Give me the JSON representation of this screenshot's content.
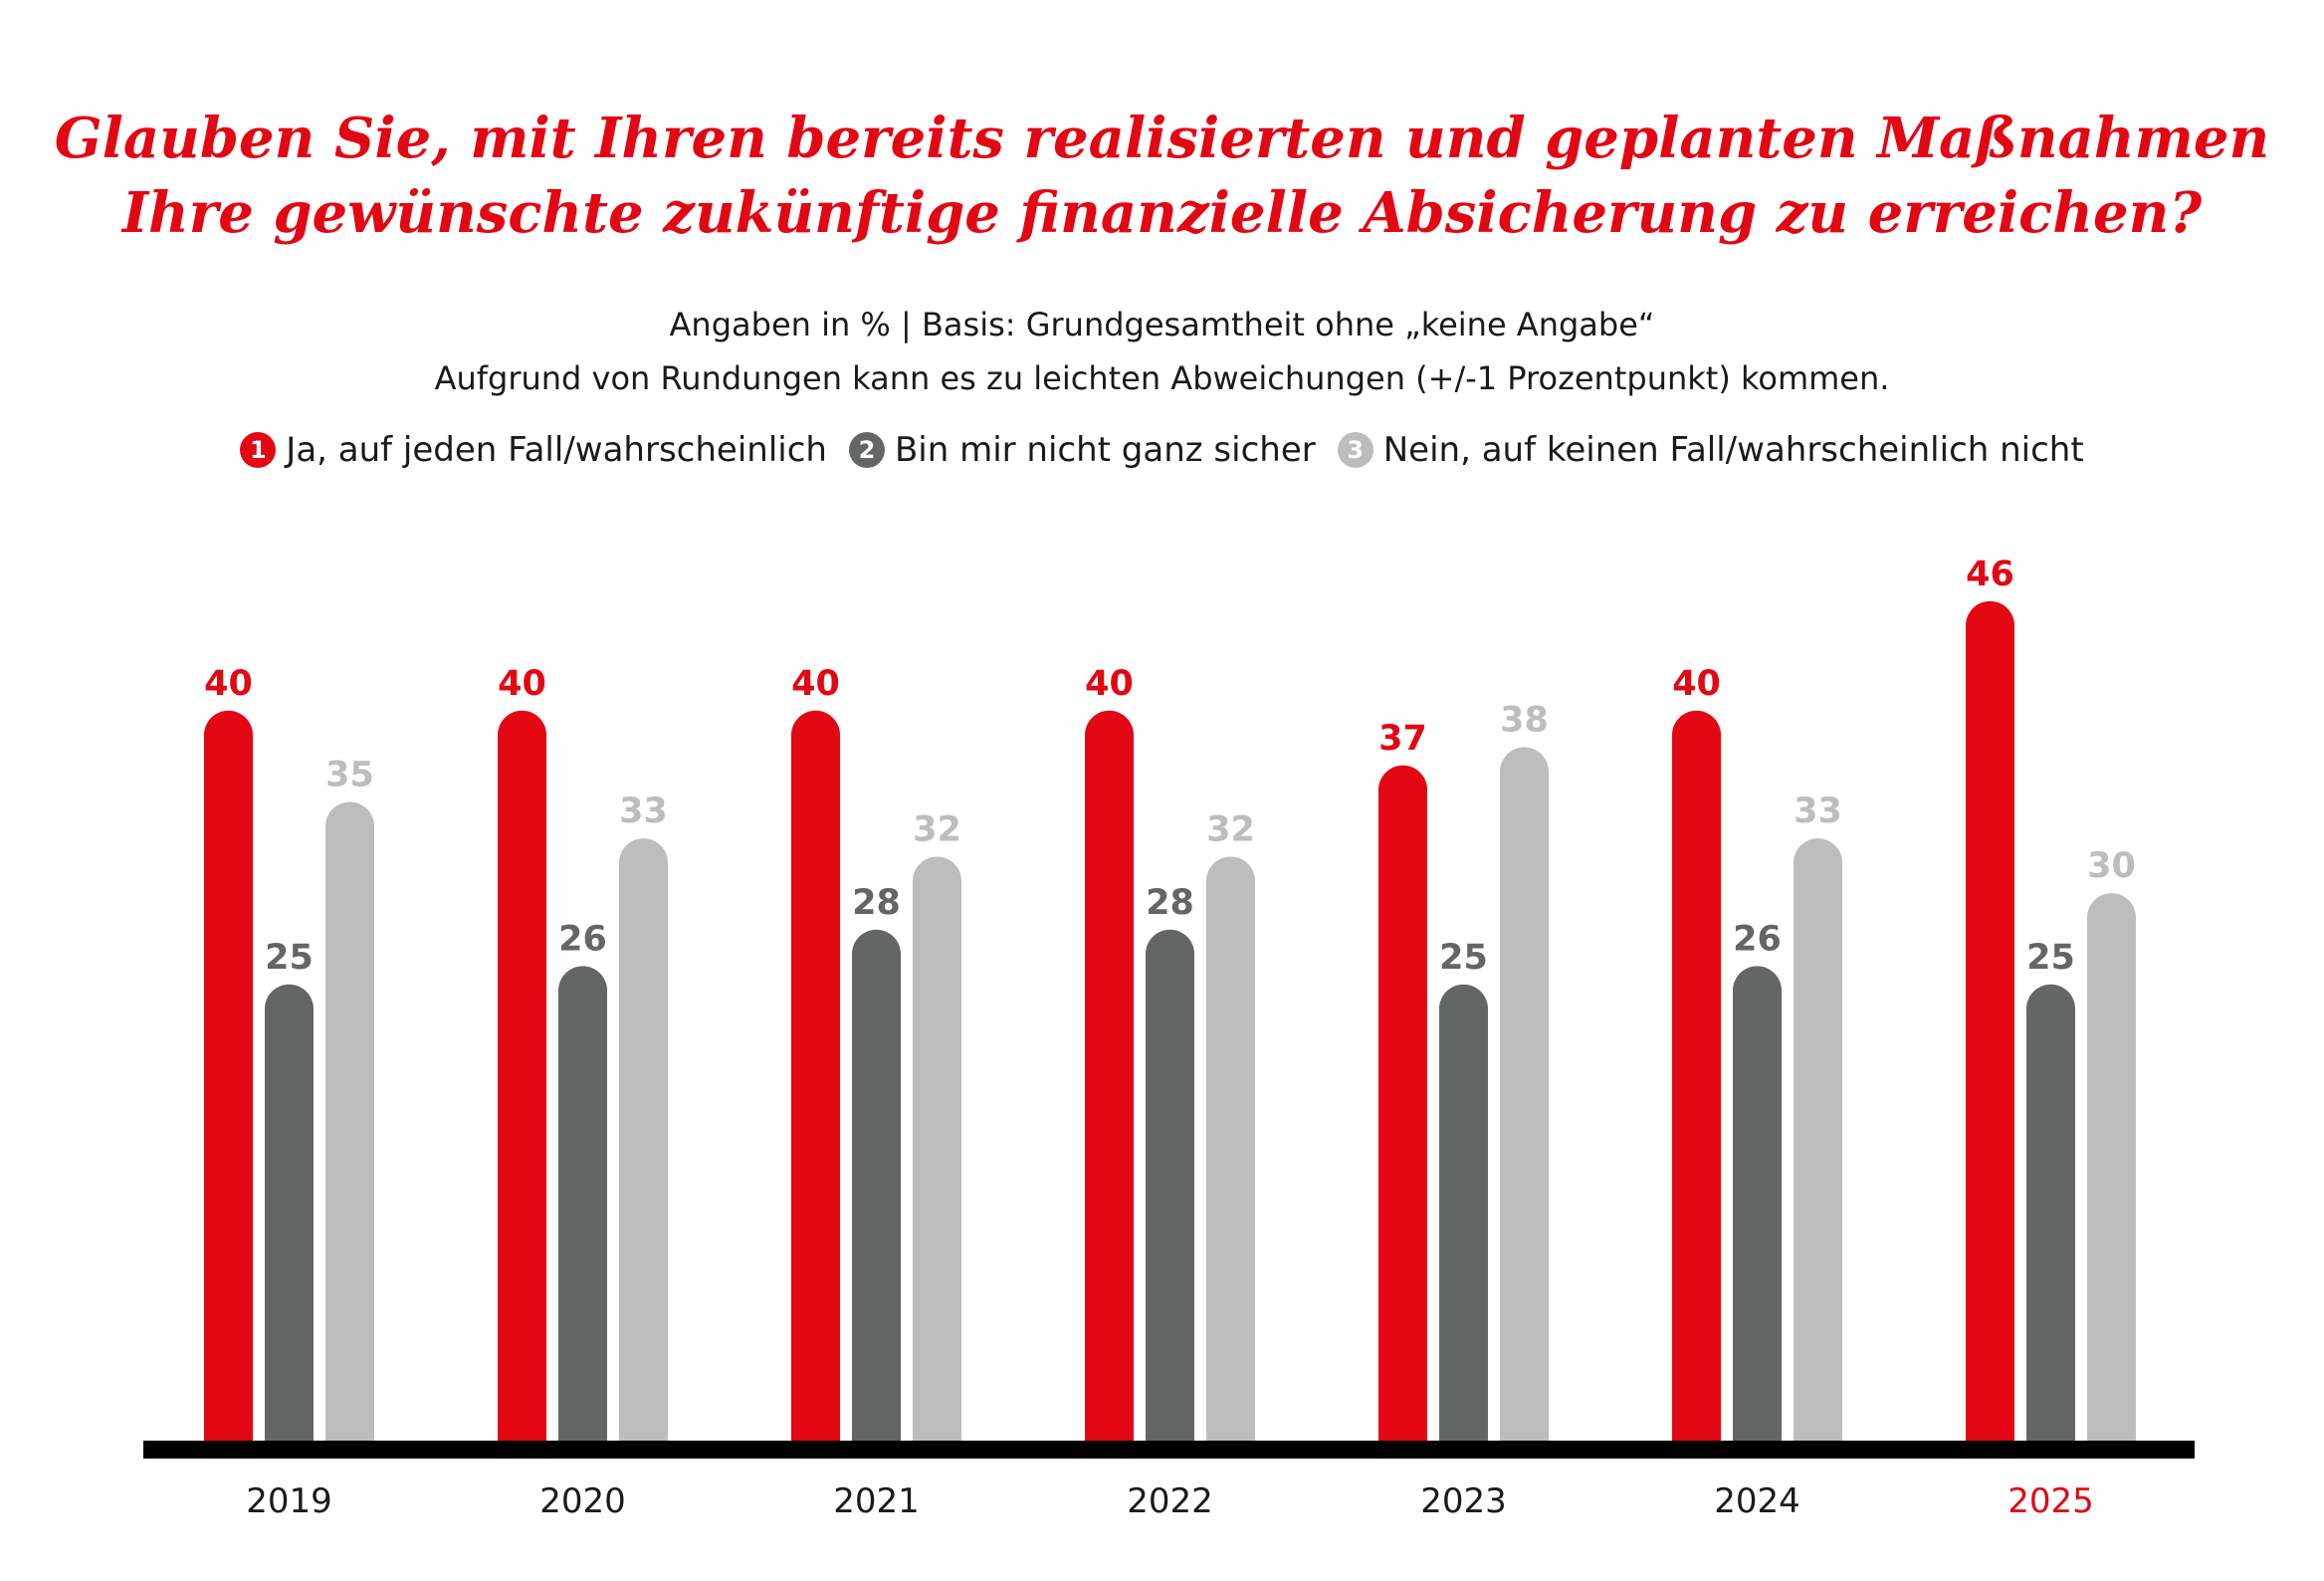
{
  "title_lines": [
    "Glauben Sie, mit Ihren bereits realisierten und geplanten Maßnahmen",
    "Ihre gewünschte zukünftige finanzielle Absicherung zu erreichen?"
  ],
  "subtitle_lines": [
    "Angaben in % | Basis: Grundgesamtheit ohne „keine Angabe“",
    "Aufgrund von Rundungen kann es zu leichten Abweichungen (+/-1 Prozentpunkt) kommen."
  ],
  "colors": {
    "red": "#e30613",
    "dark": "#646665",
    "light": "#bcbdbc",
    "axis": "#000000"
  },
  "chart_data": {
    "type": "bar",
    "categories": [
      "2019",
      "2020",
      "2021",
      "2022",
      "2023",
      "2024",
      "2025"
    ],
    "highlight_category": "2025",
    "series": [
      {
        "marker": "1",
        "name": "Ja, auf jeden Fall/wahrscheinlich",
        "color": "#e30613",
        "values": [
          40,
          40,
          40,
          40,
          37,
          40,
          46
        ]
      },
      {
        "marker": "2",
        "name": "Bin mir nicht ganz sicher",
        "color": "#646665",
        "values": [
          25,
          26,
          28,
          28,
          25,
          26,
          25
        ]
      },
      {
        "marker": "3",
        "name": "Nein, auf keinen Fall/wahrscheinlich nicht",
        "color": "#bcbdbc",
        "values": [
          35,
          33,
          32,
          32,
          38,
          33,
          30
        ]
      }
    ],
    "ylim": [
      0,
      50
    ],
    "grid": false,
    "legend_placement": "top",
    "data_labels": true
  }
}
